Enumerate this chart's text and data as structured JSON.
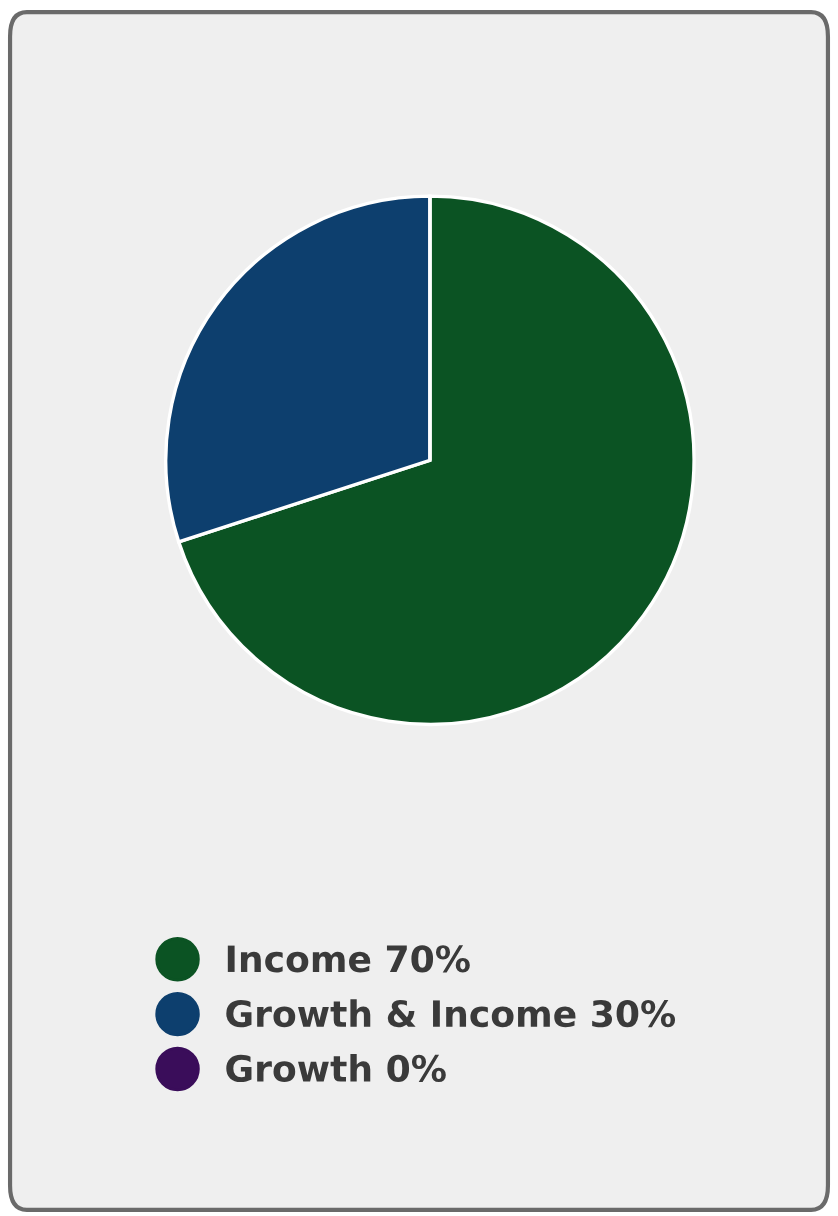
{
  "chart_data": {
    "type": "pie",
    "categories": [
      "Income 70%",
      "Growth & Income 30%",
      "Growth 0%"
    ],
    "values": [
      70,
      30,
      0
    ],
    "colors": [
      "#0b5323",
      "#0d3f6e",
      "#3a0d5a"
    ],
    "legend": "bottom"
  }
}
